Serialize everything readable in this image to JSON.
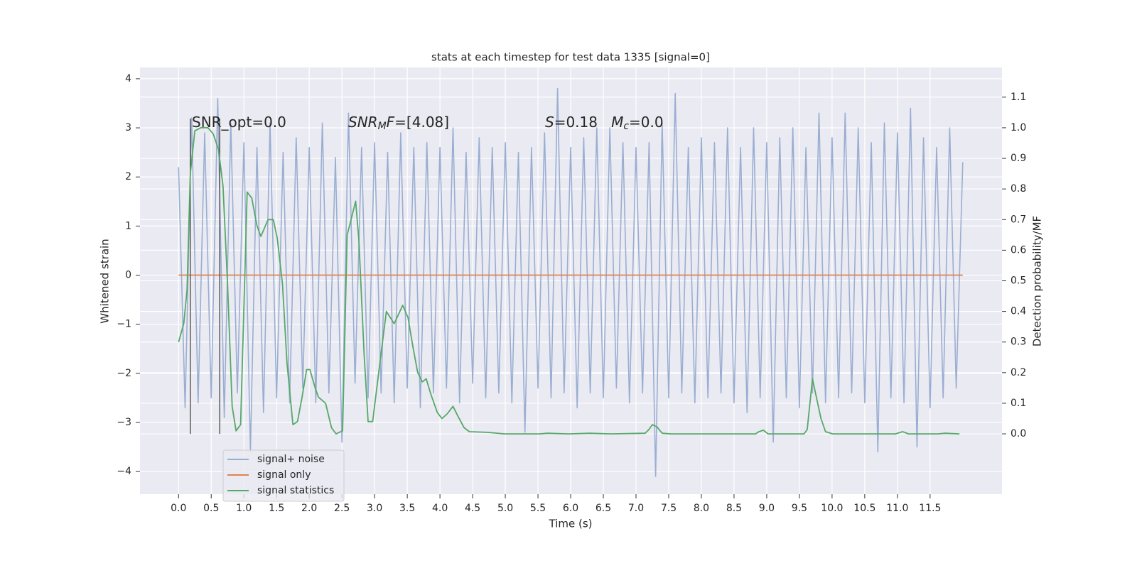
{
  "chart_data": {
    "type": "line",
    "title": "stats at each timestep for test data 1335 [signal=0]",
    "xlabel": "Time (s)",
    "ylabel": "Whitened strain",
    "y2label": "Detection probability/MF",
    "annotations": [
      {
        "parts": [
          {
            "text": "SNR_opt=0.0"
          }
        ]
      },
      {
        "parts": [
          {
            "text": "SNR",
            "italic": true
          },
          {
            "text": "M",
            "italic": true,
            "sub": true
          },
          {
            "text": "F",
            "italic": true
          },
          {
            "text": "=[4.08]"
          }
        ]
      },
      {
        "parts": [
          {
            "text": "S",
            "italic": true
          },
          {
            "text": "=0.18   "
          },
          {
            "text": "M",
            "italic": true
          },
          {
            "text": "c",
            "italic": true,
            "sub": true
          },
          {
            "text": "=0.0"
          }
        ]
      }
    ],
    "xlim": [
      -0.59,
      12.6
    ],
    "ylim": [
      -4.46,
      4.23
    ],
    "y2lim": [
      -0.197,
      1.197
    ],
    "xticks": [
      {
        "value": 0,
        "label": "0.0"
      },
      0.5,
      {
        "value": 1,
        "label": "1.0"
      },
      1.5,
      {
        "value": 2,
        "label": "2.0"
      },
      2.5,
      {
        "value": 3,
        "label": "3.0"
      },
      3.5,
      {
        "value": 4,
        "label": "4.0"
      },
      4.5,
      {
        "value": 5,
        "label": "5.0"
      },
      5.5,
      {
        "value": 6,
        "label": "6.0"
      },
      6.5,
      {
        "value": 7,
        "label": "7.0"
      },
      7.5,
      {
        "value": 8,
        "label": "8.0"
      },
      8.5,
      {
        "value": 9,
        "label": "9.0"
      },
      9.5,
      {
        "value": 10,
        "label": "10.0"
      },
      10.5,
      {
        "value": 11,
        "label": "11.0"
      },
      11.5
    ],
    "yticks": [
      {
        "value": -4,
        "label": "−4"
      },
      {
        "value": -3,
        "label": "−3"
      },
      {
        "value": -2,
        "label": "−2"
      },
      {
        "value": -1,
        "label": "−1"
      },
      0,
      1,
      2,
      3,
      4
    ],
    "y2ticks": [
      {
        "value": 0,
        "label": "0.0"
      },
      0.1,
      0.2,
      0.3,
      0.4,
      0.5,
      0.6,
      0.7,
      0.8,
      0.9,
      {
        "value": 1,
        "label": "1.0"
      },
      1.1
    ],
    "grid": true,
    "legend": "lower left",
    "vlines": {
      "x": [
        0.18,
        0.63
      ],
      "range": [
        0,
        1.03
      ],
      "axis": "y2",
      "color": "#444444"
    },
    "series": [
      {
        "name": "signal+ noise",
        "color": "#9aaed2",
        "x": [
          0,
          0.1,
          0.2,
          0.3,
          0.4,
          0.5,
          0.6,
          0.7,
          0.8,
          0.9,
          1,
          1.1,
          1.2,
          1.3,
          1.4,
          1.5,
          1.6,
          1.7,
          1.8,
          1.9,
          2,
          2.1,
          2.2,
          2.3,
          2.4,
          2.5,
          2.6,
          2.7,
          2.8,
          2.9,
          3,
          3.1,
          3.2,
          3.3,
          3.4,
          3.5,
          3.6,
          3.7,
          3.8,
          3.9,
          4,
          4.1,
          4.2,
          4.3,
          4.4,
          4.5,
          4.6,
          4.7,
          4.8,
          4.9,
          5,
          5.1,
          5.2,
          5.3,
          5.4,
          5.5,
          5.6,
          5.7,
          5.8,
          5.9,
          6,
          6.1,
          6.2,
          6.3,
          6.4,
          6.5,
          6.6,
          6.7,
          6.8,
          6.9,
          7,
          7.1,
          7.2,
          7.3,
          7.4,
          7.5,
          7.6,
          7.7,
          7.8,
          7.9,
          8,
          8.1,
          8.2,
          8.3,
          8.4,
          8.5,
          8.6,
          8.7,
          8.8,
          8.9,
          9,
          9.1,
          9.2,
          9.3,
          9.4,
          9.5,
          9.6,
          9.7,
          9.8,
          9.9,
          10,
          10.1,
          10.2,
          10.3,
          10.4,
          10.5,
          10.6,
          10.7,
          10.8,
          10.9,
          11,
          11.1,
          11.2,
          11.3,
          11.4,
          11.5,
          11.6,
          11.7,
          11.8,
          11.9,
          12
        ],
        "values": [
          2.2,
          -2.7,
          3.2,
          -2.6,
          2.9,
          -2.5,
          3.6,
          -2.9,
          3.1,
          -2.4,
          2.7,
          -3.6,
          2.6,
          -2.8,
          3.1,
          -2.5,
          2.5,
          -2.6,
          2.8,
          -2.3,
          2.6,
          -2.6,
          3.1,
          -2.4,
          2.4,
          -3.4,
          3.3,
          -2.2,
          2.6,
          -2.5,
          2.7,
          -2.4,
          2.5,
          -2.6,
          2.9,
          -2.3,
          2.6,
          -2.7,
          2.7,
          -2.4,
          2.6,
          -2.3,
          3.0,
          -2.6,
          2.5,
          -2.2,
          2.8,
          -2.5,
          2.6,
          -2.4,
          2.7,
          -2.6,
          2.5,
          -3.2,
          2.6,
          -2.3,
          2.9,
          -2.5,
          3.8,
          -2.4,
          2.6,
          -2.7,
          2.8,
          -2.4,
          3.0,
          -2.5,
          3.0,
          -2.3,
          2.7,
          -2.6,
          2.6,
          -2.4,
          2.7,
          -4.1,
          3.1,
          -2.5,
          3.7,
          -2.4,
          2.6,
          -2.6,
          2.8,
          -2.5,
          2.7,
          -2.4,
          3.0,
          -2.6,
          2.6,
          -2.8,
          3.0,
          -2.5,
          2.7,
          -3.4,
          2.8,
          -2.5,
          3.0,
          -2.7,
          2.6,
          -2.4,
          3.3,
          -2.6,
          2.8,
          -2.5,
          3.3,
          -2.4,
          3.0,
          -2.6,
          2.7,
          -3.6,
          3.1,
          -2.5,
          2.9,
          -2.6,
          3.4,
          -3.5,
          2.8,
          -2.7,
          2.6,
          -2.5,
          3.0,
          -2.3,
          2.3
        ]
      },
      {
        "name": "signal only",
        "color": "#dd8452",
        "x": [
          0,
          12
        ],
        "values": [
          0,
          0
        ]
      },
      {
        "name": "signal statistics",
        "color": "#55a868",
        "axis": "y2",
        "x": [
          0,
          0.08,
          0.13,
          0.18,
          0.25,
          0.34,
          0.45,
          0.53,
          0.61,
          0.68,
          0.75,
          0.82,
          0.88,
          0.95,
          1.05,
          1.12,
          1.2,
          1.26,
          1.37,
          1.45,
          1.51,
          1.59,
          1.66,
          1.75,
          1.82,
          1.89,
          1.96,
          2.01,
          2.09,
          2.14,
          2.25,
          2.34,
          2.41,
          2.51,
          2.58,
          2.64,
          2.71,
          2.76,
          2.84,
          2.9,
          2.97,
          3.08,
          3.18,
          3.3,
          3.43,
          3.51,
          3.59,
          3.66,
          3.73,
          3.79,
          3.86,
          3.96,
          4.03,
          4.11,
          4.2,
          4.27,
          4.37,
          4.45,
          4.72,
          4.99,
          5.53,
          5.64,
          5.97,
          6.29,
          6.62,
          7.14,
          7.2,
          7.25,
          7.32,
          7.4,
          7.54,
          8.83,
          8.88,
          8.95,
          9.02,
          9.57,
          9.62,
          9.7,
          9.77,
          9.83,
          9.9,
          10.01,
          10.97,
          11.08,
          11.17,
          11.62,
          11.73,
          11.95
        ],
        "values": [
          0.3,
          0.36,
          0.47,
          0.85,
          0.99,
          1.0,
          1.0,
          0.98,
          0.93,
          0.81,
          0.49,
          0.09,
          0.01,
          0.03,
          0.79,
          0.77,
          0.68,
          0.645,
          0.7,
          0.7,
          0.64,
          0.49,
          0.23,
          0.03,
          0.04,
          0.12,
          0.21,
          0.21,
          0.15,
          0.12,
          0.1,
          0.02,
          0,
          0.01,
          0.65,
          0.7,
          0.76,
          0.63,
          0.26,
          0.04,
          0.04,
          0.23,
          0.4,
          0.36,
          0.42,
          0.38,
          0.28,
          0.2,
          0.17,
          0.18,
          0.13,
          0.07,
          0.05,
          0.065,
          0.09,
          0.06,
          0.02,
          0.007,
          0.005,
          0,
          0,
          0.002,
          0,
          0.002,
          0,
          0.002,
          0.015,
          0.03,
          0.023,
          0.002,
          0,
          0,
          0.007,
          0.012,
          0,
          0,
          0.014,
          0.18,
          0.11,
          0.05,
          0.007,
          0,
          0,
          0.007,
          0,
          0,
          0.002,
          0
        ]
      }
    ]
  }
}
